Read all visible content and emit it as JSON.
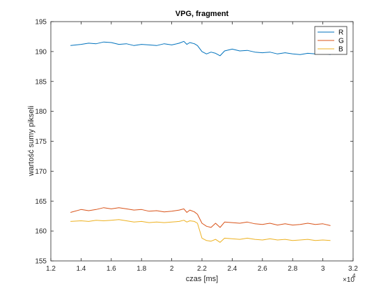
{
  "chart_data": {
    "type": "line",
    "title": "VPG, fragment",
    "xlabel": "czas [ms]",
    "ylabel": "wartość sumy pikseli",
    "x_multiplier_label": "×10",
    "x_multiplier_exponent": "4",
    "xlim": [
      12000,
      32000
    ],
    "ylim": [
      155,
      195
    ],
    "xticks": [
      12000,
      14000,
      16000,
      18000,
      20000,
      22000,
      24000,
      26000,
      28000,
      30000,
      32000
    ],
    "xtick_labels": [
      "1.2",
      "1.4",
      "1.6",
      "1.8",
      "2",
      "2.2",
      "2.4",
      "2.6",
      "2.8",
      "3",
      "3.2"
    ],
    "yticks": [
      155,
      160,
      165,
      170,
      175,
      180,
      185,
      190,
      195
    ],
    "ytick_labels": [
      "155",
      "160",
      "165",
      "170",
      "175",
      "180",
      "185",
      "190",
      "195"
    ],
    "legend_position": "top-right",
    "grid": false,
    "series": [
      {
        "name": "R",
        "color": "#0072BD",
        "x": [
          13300,
          14000,
          14500,
          15000,
          15500,
          16000,
          16500,
          17000,
          17500,
          18000,
          18500,
          19000,
          19500,
          20000,
          20500,
          20800,
          21000,
          21200,
          21500,
          21700,
          22000,
          22300,
          22600,
          22900,
          23200,
          23500,
          24000,
          24500,
          25000,
          25500,
          26000,
          26500,
          27000,
          27500,
          28000,
          28500,
          29000,
          29500,
          30000,
          30500
        ],
        "y": [
          191.0,
          191.2,
          191.4,
          191.3,
          191.6,
          191.5,
          191.2,
          191.3,
          191.0,
          191.2,
          191.1,
          191.0,
          191.3,
          191.1,
          191.4,
          191.7,
          191.2,
          191.5,
          191.3,
          191.0,
          190.0,
          189.6,
          189.9,
          189.7,
          189.3,
          190.1,
          190.4,
          190.1,
          190.2,
          189.9,
          189.8,
          189.9,
          189.6,
          189.8,
          189.6,
          189.5,
          189.7,
          189.6,
          189.7,
          189.5
        ]
      },
      {
        "name": "G",
        "color": "#D95319",
        "x": [
          13300,
          14000,
          14500,
          15000,
          15500,
          16000,
          16500,
          17000,
          17500,
          18000,
          18500,
          19000,
          19500,
          20000,
          20500,
          20800,
          21000,
          21200,
          21500,
          21700,
          22000,
          22300,
          22600,
          22900,
          23200,
          23500,
          24000,
          24500,
          25000,
          25500,
          26000,
          26500,
          27000,
          27500,
          28000,
          28500,
          29000,
          29500,
          30000,
          30500
        ],
        "y": [
          163.1,
          163.6,
          163.4,
          163.6,
          163.9,
          163.7,
          163.9,
          163.7,
          163.5,
          163.6,
          163.3,
          163.4,
          163.2,
          163.3,
          163.5,
          163.7,
          163.1,
          163.5,
          163.2,
          162.8,
          161.3,
          160.8,
          160.6,
          161.3,
          160.6,
          161.5,
          161.4,
          161.3,
          161.5,
          161.2,
          161.1,
          161.3,
          161.0,
          161.2,
          161.0,
          161.1,
          161.3,
          161.1,
          161.2,
          160.9
        ]
      },
      {
        "name": "B",
        "color": "#EDB120",
        "x": [
          13300,
          14000,
          14500,
          15000,
          15500,
          16000,
          16500,
          17000,
          17500,
          18000,
          18500,
          19000,
          19500,
          20000,
          20500,
          20800,
          21000,
          21200,
          21500,
          21700,
          22000,
          22300,
          22600,
          22900,
          23200,
          23500,
          24000,
          24500,
          25000,
          25500,
          26000,
          26500,
          27000,
          27500,
          28000,
          28500,
          29000,
          29500,
          30000,
          30500
        ],
        "y": [
          161.6,
          161.7,
          161.6,
          161.8,
          161.7,
          161.8,
          161.9,
          161.7,
          161.5,
          161.6,
          161.4,
          161.5,
          161.4,
          161.5,
          161.6,
          161.8,
          161.5,
          161.7,
          161.6,
          161.3,
          158.8,
          158.4,
          158.3,
          158.6,
          158.1,
          158.8,
          158.7,
          158.6,
          158.8,
          158.6,
          158.5,
          158.7,
          158.5,
          158.6,
          158.4,
          158.5,
          158.6,
          158.4,
          158.5,
          158.4
        ]
      }
    ]
  }
}
